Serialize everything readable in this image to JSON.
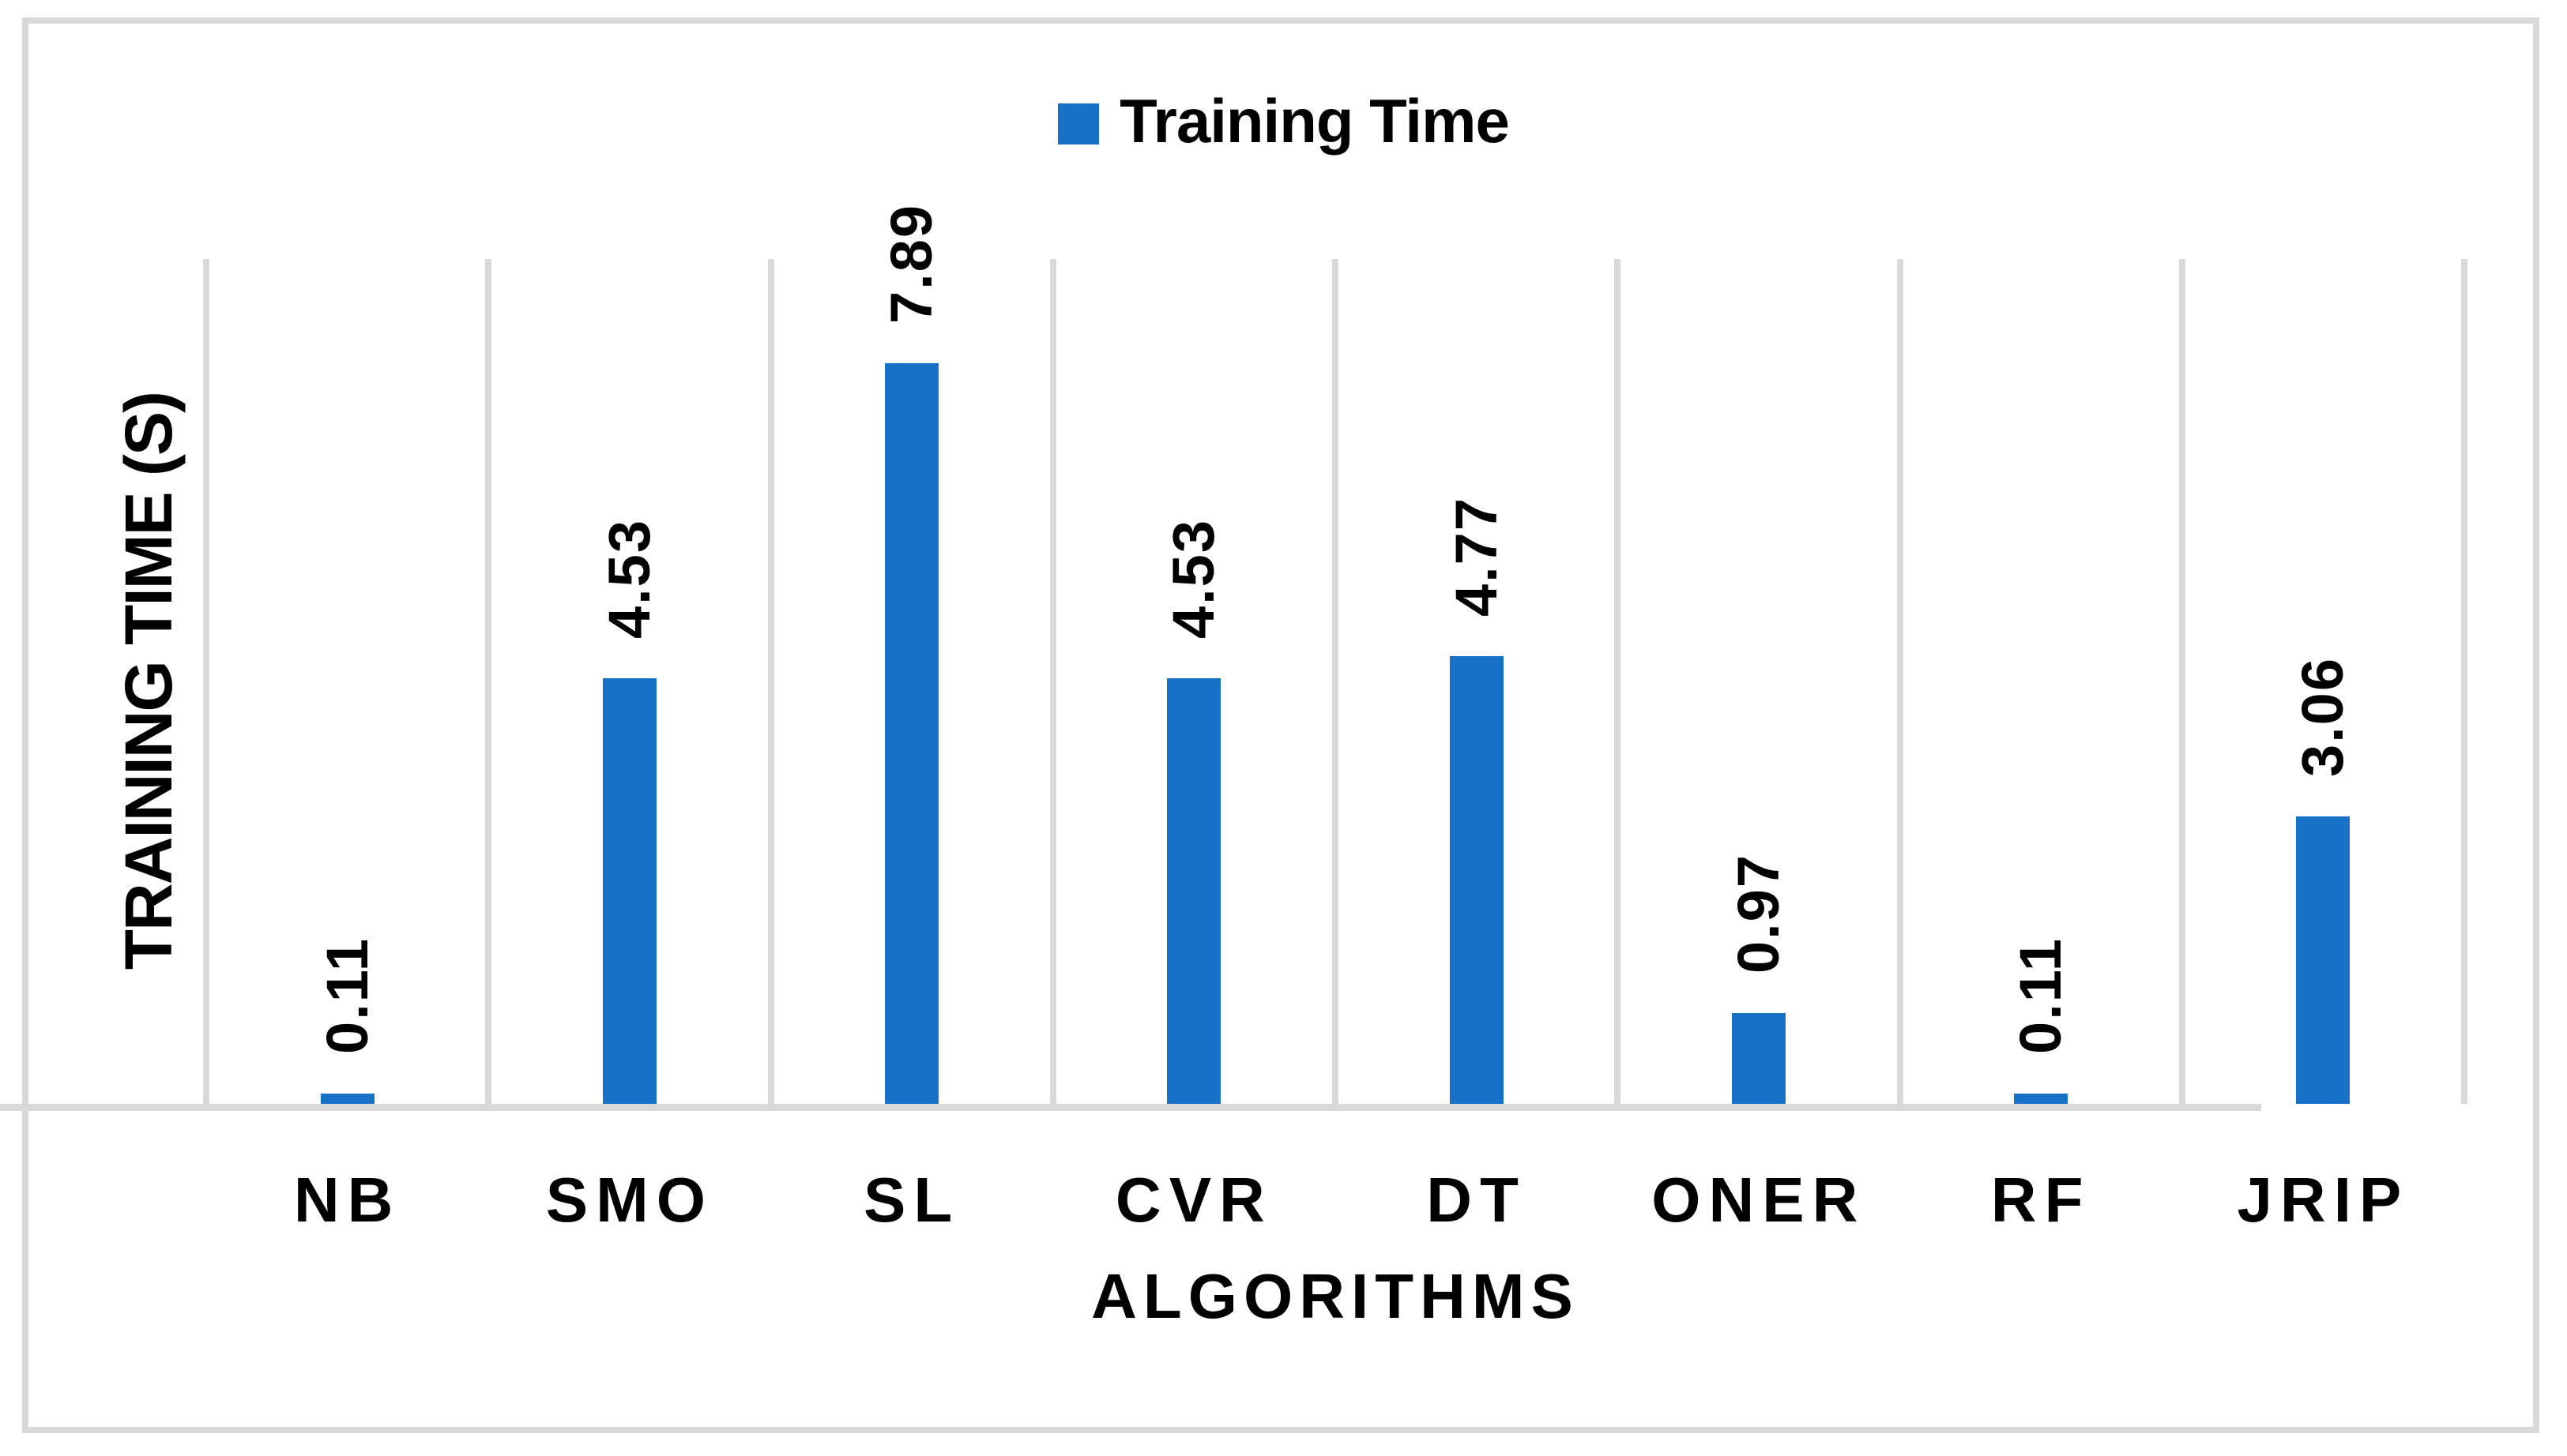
{
  "frame": {
    "background_color": "#ffffff",
    "border_color": "#d9d9d9"
  },
  "legend": {
    "label": "Training Time",
    "marker_color": "#1772c7",
    "position": "top-center"
  },
  "chart_data": {
    "type": "bar",
    "title": "",
    "categories": [
      "NB",
      "SMO",
      "SL",
      "CVR",
      "DT",
      "ONER",
      "RF",
      "JRIP"
    ],
    "values": [
      0.11,
      4.53,
      7.89,
      4.53,
      4.77,
      0.97,
      0.11,
      3.06
    ],
    "data_labels": [
      "0.11",
      "4.53",
      "7.89",
      "4.53",
      "4.77",
      "0.97",
      "0.11",
      "3.06"
    ],
    "series": [
      {
        "name": "Training Time",
        "values": [
          0.11,
          4.53,
          7.89,
          4.53,
          4.77,
          0.97,
          0.11,
          3.06
        ]
      }
    ],
    "xlabel": "ALGORITHMS",
    "ylabel": "TRAINING TIME (S)",
    "ylim": [
      0,
      9
    ],
    "y_tick_labels_visible": false,
    "grid": "vertical category separators only",
    "bar_color": "#1772c7",
    "gridline_color": "#d9d9d9",
    "data_label_rotation": "90deg bottom-to-top",
    "legend_position": "top-center"
  }
}
